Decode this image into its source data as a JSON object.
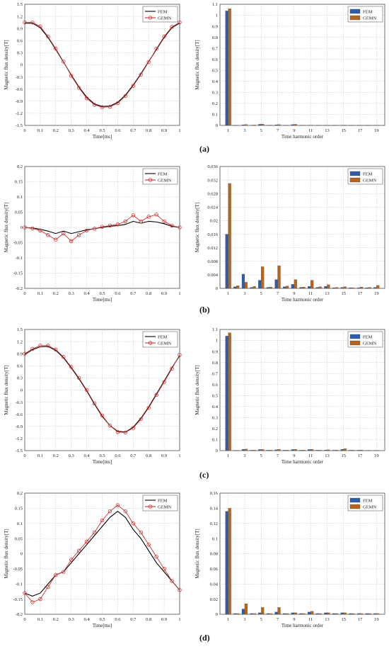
{
  "panel_labels": [
    "(a)",
    "(b)",
    "(c)",
    "(d)"
  ],
  "colors": {
    "fem": "#000000",
    "gemn": "#cc3333",
    "bar_fem": "#2e5eaa",
    "bar_gemn": "#b5651d"
  },
  "chart_data": [
    {
      "type": "line",
      "xlabel": "Time[ms]",
      "ylabel": "Magnetic flux density[T]",
      "xlim": [
        0,
        1
      ],
      "ylim": [
        -1.5,
        1.5
      ],
      "xticks": [
        "0",
        "0.1",
        "0.2",
        "0.3",
        "0.4",
        "0.5",
        "0.6",
        "0.7",
        "0.8",
        "0.9",
        "1"
      ],
      "yticks": [
        "-1.5",
        "-1.2",
        "-0.9",
        "-0.6",
        "-0.3",
        "0",
        "0.3",
        "0.6",
        "0.9",
        "1.2",
        "1.5"
      ],
      "grid": true,
      "legend": "top-right",
      "x": [
        0,
        0.05,
        0.1,
        0.15,
        0.2,
        0.25,
        0.3,
        0.35,
        0.4,
        0.45,
        0.5,
        0.55,
        0.6,
        0.65,
        0.7,
        0.75,
        0.8,
        0.85,
        0.9,
        0.95,
        1
      ],
      "series": [
        {
          "name": "FEM",
          "values": [
            1.03,
            1.03,
            0.92,
            0.68,
            0.38,
            0.07,
            -0.25,
            -0.55,
            -0.8,
            -0.97,
            -1.03,
            -1.02,
            -0.93,
            -0.75,
            -0.5,
            -0.22,
            0.08,
            0.38,
            0.68,
            0.92,
            1.03
          ]
        },
        {
          "name": "GEMN",
          "values": [
            1.05,
            1.05,
            0.95,
            0.7,
            0.4,
            0.08,
            -0.27,
            -0.57,
            -0.83,
            -0.99,
            -1.05,
            -1.04,
            -0.95,
            -0.77,
            -0.52,
            -0.24,
            0.07,
            0.4,
            0.7,
            0.94,
            1.05
          ]
        }
      ]
    },
    {
      "type": "bar",
      "xlabel": "Time harmonic order",
      "ylabel": "Magnetic flux density[T]",
      "ylim": [
        0,
        1.1
      ],
      "yticks": [
        "0",
        "0.1",
        "0.2",
        "0.3",
        "0.4",
        "0.5",
        "0.6",
        "0.7",
        "0.8",
        "0.9",
        "1",
        "1.1"
      ],
      "grid": true,
      "legend": "top-right",
      "categories": [
        "1",
        "2",
        "3",
        "4",
        "5",
        "6",
        "7",
        "8",
        "9",
        "10",
        "11",
        "12",
        "13",
        "14",
        "15",
        "16",
        "17",
        "18",
        "19"
      ],
      "series": [
        {
          "name": "FEM",
          "values": [
            1.04,
            0,
            0.006,
            0.002,
            0.01,
            0.002,
            0.006,
            0.002,
            0.008,
            0.002,
            0.002,
            0.001,
            0.002,
            0.001,
            0.002,
            0.001,
            0.001,
            0.001,
            0.001
          ]
        },
        {
          "name": "GEMN",
          "values": [
            1.06,
            0,
            0.008,
            0.004,
            0.012,
            0.003,
            0.008,
            0.002,
            0.01,
            0.002,
            0.003,
            0.001,
            0.002,
            0.001,
            0.003,
            0.001,
            0.002,
            0.001,
            0.002
          ]
        }
      ]
    },
    {
      "type": "line",
      "xlabel": "Time[ms]",
      "ylabel": "Magnetic flux density[T]",
      "xlim": [
        0,
        1
      ],
      "ylim": [
        -0.2,
        0.2
      ],
      "xticks": [
        "0",
        "0.1",
        "0.2",
        "0.3",
        "0.4",
        "0.5",
        "0.6",
        "0.7",
        "0.8",
        "0.9",
        "1"
      ],
      "yticks": [
        "-0.2",
        "-0.15",
        "-0.1",
        "-0.05",
        "0",
        "0.05",
        "0.1",
        "0.15",
        "0.2"
      ],
      "grid": true,
      "legend": "top-right",
      "x": [
        0,
        0.05,
        0.1,
        0.15,
        0.2,
        0.25,
        0.3,
        0.35,
        0.4,
        0.45,
        0.5,
        0.55,
        0.6,
        0.65,
        0.7,
        0.75,
        0.8,
        0.85,
        0.9,
        0.95,
        1
      ],
      "series": [
        {
          "name": "FEM",
          "values": [
            0,
            -0.002,
            -0.006,
            -0.012,
            -0.02,
            -0.012,
            -0.02,
            -0.014,
            -0.008,
            -0.004,
            0,
            0.004,
            0.006,
            0.01,
            0.02,
            0.014,
            0.02,
            0.018,
            0.012,
            0.004,
            0
          ]
        },
        {
          "name": "GEMN",
          "values": [
            0,
            -0.003,
            -0.01,
            -0.025,
            -0.04,
            -0.02,
            -0.045,
            -0.025,
            -0.01,
            -0.004,
            0.002,
            0.006,
            0.01,
            0.02,
            0.04,
            0.02,
            0.035,
            0.042,
            0.02,
            0.006,
            0
          ]
        }
      ]
    },
    {
      "type": "bar",
      "xlabel": "Time harmonic order",
      "ylabel": "Magnetic flux density[T]",
      "ylim": [
        0,
        0.036
      ],
      "yticks": [
        "0",
        "0.004",
        "0.008",
        "0.012",
        "0.016",
        "0.02",
        "0.024",
        "0.028",
        "0.032",
        "0.036"
      ],
      "grid": true,
      "legend": "top-right",
      "categories": [
        "1",
        "2",
        "3",
        "4",
        "5",
        "6",
        "7",
        "8",
        "9",
        "10",
        "11",
        "12",
        "13",
        "14",
        "15",
        "16",
        "17",
        "18",
        "19"
      ],
      "series": [
        {
          "name": "FEM",
          "values": [
            0.016,
            0.0005,
            0.0042,
            0.0003,
            0.0024,
            0.0003,
            0.0026,
            0.0005,
            0.0012,
            0.0003,
            0.0006,
            0.0003,
            0.0006,
            0.0002,
            0.0003,
            0.0002,
            0.0002,
            0.0002,
            0.0003
          ]
        },
        {
          "name": "GEMN",
          "values": [
            0.031,
            0.0008,
            0.0018,
            0.0006,
            0.0064,
            0.0004,
            0.0067,
            0.0007,
            0.0026,
            0.0004,
            0.0024,
            0.0005,
            0.0011,
            0.0003,
            0.0005,
            0.0002,
            0.0004,
            0.0003,
            0.0009
          ]
        }
      ]
    },
    {
      "type": "line",
      "xlabel": "Time[ms]",
      "ylabel": "Magnetic flux density[T]",
      "xlim": [
        0,
        1
      ],
      "ylim": [
        -1.5,
        1.5
      ],
      "xticks": [
        "0",
        "0.1",
        "0.2",
        "0.3",
        "0.4",
        "0.5",
        "0.6",
        "0.7",
        "0.8",
        "0.9",
        "1"
      ],
      "yticks": [
        "-1.5",
        "-1.2",
        "-0.9",
        "-0.6",
        "-0.3",
        "0",
        "0.3",
        "0.6",
        "0.9",
        "1.2",
        "1.5"
      ],
      "grid": true,
      "legend": "top-right",
      "x": [
        0,
        0.05,
        0.1,
        0.15,
        0.2,
        0.25,
        0.3,
        0.35,
        0.4,
        0.45,
        0.5,
        0.55,
        0.6,
        0.65,
        0.7,
        0.75,
        0.8,
        0.85,
        0.9,
        0.95,
        1
      ],
      "series": [
        {
          "name": "FEM",
          "values": [
            0.88,
            1.0,
            1.07,
            1.08,
            0.98,
            0.8,
            0.55,
            0.28,
            -0.02,
            -0.35,
            -0.65,
            -0.88,
            -1.02,
            -1.04,
            -0.92,
            -0.7,
            -0.42,
            -0.1,
            0.22,
            0.55,
            0.85
          ]
        },
        {
          "name": "GEMN",
          "values": [
            0.9,
            1.02,
            1.1,
            1.1,
            1.0,
            0.82,
            0.57,
            0.3,
            0.0,
            -0.33,
            -0.63,
            -0.88,
            -1.04,
            -1.05,
            -0.94,
            -0.72,
            -0.44,
            -0.12,
            0.2,
            0.53,
            0.87
          ]
        }
      ]
    },
    {
      "type": "bar",
      "xlabel": "Time harmonic order",
      "ylabel": "Magnetic flux density[T]",
      "ylim": [
        0,
        1.1
      ],
      "yticks": [
        "0",
        "0.1",
        "0.2",
        "0.3",
        "0.4",
        "0.5",
        "0.6",
        "0.7",
        "0.8",
        "0.9",
        "1",
        "1.1"
      ],
      "grid": true,
      "legend": "top-right",
      "categories": [
        "1",
        "2",
        "3",
        "4",
        "5",
        "6",
        "7",
        "8",
        "9",
        "10",
        "11",
        "12",
        "13",
        "14",
        "15",
        "16",
        "17",
        "18",
        "19"
      ],
      "series": [
        {
          "name": "FEM",
          "values": [
            1.04,
            0.002,
            0.012,
            0.004,
            0.01,
            0.004,
            0.008,
            0.004,
            0.01,
            0.004,
            0.01,
            0.004,
            0.006,
            0.004,
            0.012,
            0.004,
            0.004,
            0.002,
            0.002
          ]
        },
        {
          "name": "GEMN",
          "values": [
            1.07,
            0.003,
            0.014,
            0.005,
            0.012,
            0.005,
            0.012,
            0.005,
            0.012,
            0.005,
            0.012,
            0.005,
            0.008,
            0.005,
            0.018,
            0.005,
            0.006,
            0.003,
            0.003
          ]
        }
      ]
    },
    {
      "type": "line",
      "xlabel": "Time[ms]",
      "ylabel": "Magnetic flux density[T]",
      "xlim": [
        0,
        1
      ],
      "ylim": [
        -0.2,
        0.2
      ],
      "xticks": [
        "0",
        "0.1",
        "0.2",
        "0.3",
        "0.4",
        "0.5",
        "0.6",
        "0.7",
        "0.8",
        "0.9",
        "1"
      ],
      "yticks": [
        "-0.2",
        "-0.15",
        "-0.1",
        "-0.05",
        "0",
        "0.05",
        "0.1",
        "0.15",
        "0.2"
      ],
      "grid": true,
      "legend": "top-right",
      "x": [
        0,
        0.05,
        0.1,
        0.15,
        0.2,
        0.25,
        0.3,
        0.35,
        0.4,
        0.45,
        0.5,
        0.55,
        0.6,
        0.65,
        0.7,
        0.75,
        0.8,
        0.85,
        0.9,
        0.95,
        1
      ],
      "series": [
        {
          "name": "FEM",
          "values": [
            -0.13,
            -0.14,
            -0.13,
            -0.1,
            -0.07,
            -0.06,
            -0.03,
            0.0,
            0.03,
            0.06,
            0.09,
            0.12,
            0.14,
            0.12,
            0.08,
            0.05,
            0.01,
            -0.03,
            -0.06,
            -0.09,
            -0.12
          ]
        },
        {
          "name": "GEMN",
          "values": [
            -0.13,
            -0.16,
            -0.15,
            -0.11,
            -0.07,
            -0.06,
            -0.02,
            0.01,
            0.04,
            0.07,
            0.11,
            0.14,
            0.16,
            0.14,
            0.1,
            0.07,
            0.03,
            -0.01,
            -0.05,
            -0.09,
            -0.12
          ]
        }
      ]
    },
    {
      "type": "bar",
      "xlabel": "Time harmonic order",
      "ylabel": "Magnetic flux density[T]",
      "ylim": [
        0,
        0.16
      ],
      "yticks": [
        "0",
        "0.02",
        "0.04",
        "0.06",
        "0.08",
        "0.1",
        "0.12",
        "0.14",
        "0.16"
      ],
      "grid": true,
      "legend": "top-right",
      "categories": [
        "1",
        "2",
        "3",
        "4",
        "5",
        "6",
        "7",
        "8",
        "9",
        "10",
        "11",
        "12",
        "13",
        "14",
        "15",
        "16",
        "17",
        "18",
        "19"
      ],
      "series": [
        {
          "name": "FEM",
          "values": [
            0.136,
            0.001,
            0.007,
            0.001,
            0.002,
            0.001,
            0.003,
            0.001,
            0.002,
            0.001,
            0.003,
            0.001,
            0.002,
            0.001,
            0.002,
            0.001,
            0.001,
            0.001,
            0.001
          ]
        },
        {
          "name": "GEMN",
          "values": [
            0.14,
            0.001,
            0.014,
            0.001,
            0.009,
            0.001,
            0.009,
            0.001,
            0.002,
            0.001,
            0.004,
            0.001,
            0.002,
            0.001,
            0.002,
            0.001,
            0.001,
            0.001,
            0.001
          ]
        }
      ]
    }
  ]
}
